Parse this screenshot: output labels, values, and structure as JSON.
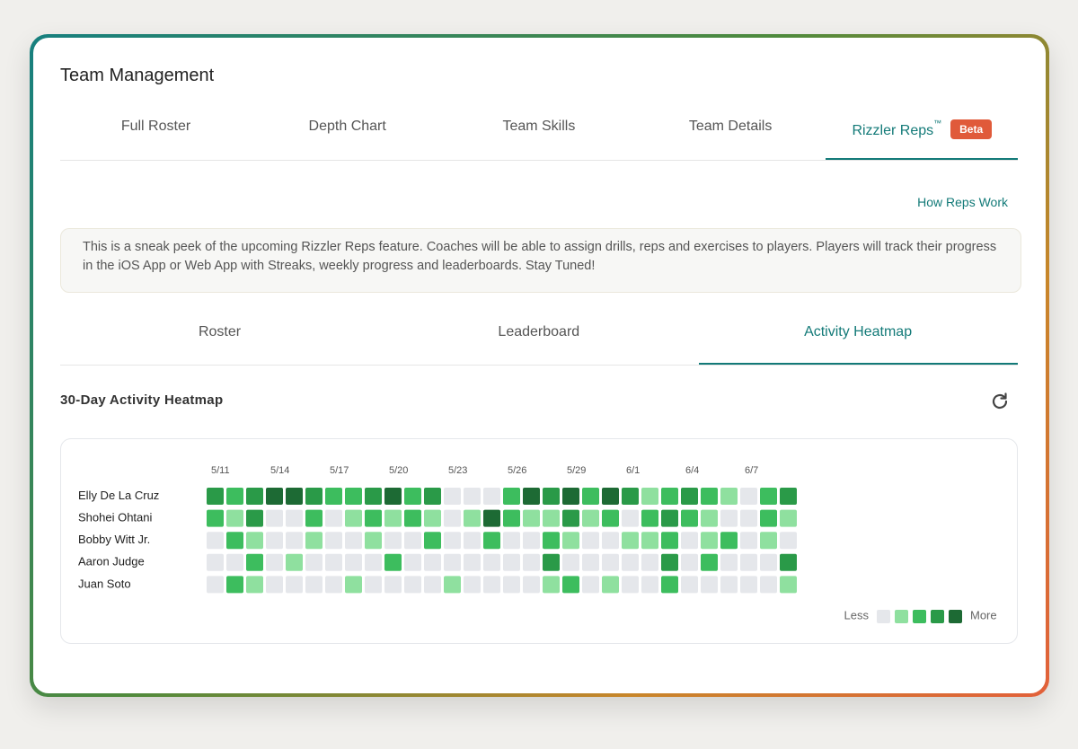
{
  "header": {
    "title": "Team Management"
  },
  "tabs": [
    {
      "label": "Full Roster"
    },
    {
      "label": "Depth Chart"
    },
    {
      "label": "Team Skills"
    },
    {
      "label": "Team Details"
    },
    {
      "label": "Rizzler Reps",
      "mark": "™",
      "badge": "Beta",
      "active": true
    }
  ],
  "help_link": "How Reps Work",
  "notice": "This is a sneak peek of the upcoming Rizzler Reps feature. Coaches will be able to assign drills, reps and exercises to players. Players will track their progress in the iOS App or Web App with Streaks, weekly progress and leaderboards. Stay Tuned!",
  "subtabs": [
    {
      "label": "Roster"
    },
    {
      "label": "Leaderboard"
    },
    {
      "label": "Activity Heatmap",
      "active": true
    }
  ],
  "section_title": "30-Day Activity Heatmap",
  "heatmap": {
    "dates": [
      "5/11",
      "5/14",
      "5/17",
      "5/20",
      "5/23",
      "5/26",
      "5/29",
      "6/1",
      "6/4",
      "6/7"
    ],
    "colors": [
      "#e5e7eb",
      "#8fe09f",
      "#3dbd5e",
      "#2a9a48",
      "#1d6a34"
    ],
    "rows": [
      {
        "name": "Elly De La Cruz",
        "levels": [
          3,
          2,
          3,
          4,
          4,
          3,
          2,
          2,
          3,
          4,
          2,
          3,
          0,
          0,
          0,
          2,
          4,
          3,
          4,
          2,
          4,
          3,
          1,
          2,
          3,
          2,
          1,
          0,
          2,
          3
        ]
      },
      {
        "name": "Shohei Ohtani",
        "levels": [
          2,
          1,
          3,
          0,
          0,
          2,
          0,
          1,
          2,
          1,
          2,
          1,
          0,
          1,
          4,
          2,
          1,
          1,
          3,
          1,
          2,
          0,
          2,
          3,
          2,
          1,
          0,
          0,
          2,
          1
        ]
      },
      {
        "name": "Bobby Witt Jr.",
        "levels": [
          0,
          2,
          1,
          0,
          0,
          1,
          0,
          0,
          1,
          0,
          0,
          2,
          0,
          0,
          2,
          0,
          0,
          2,
          1,
          0,
          0,
          1,
          1,
          2,
          0,
          1,
          2,
          0,
          1,
          0
        ]
      },
      {
        "name": "Aaron Judge",
        "levels": [
          0,
          0,
          2,
          0,
          1,
          0,
          0,
          0,
          0,
          2,
          0,
          0,
          0,
          0,
          0,
          0,
          0,
          3,
          0,
          0,
          0,
          0,
          0,
          3,
          0,
          2,
          0,
          0,
          0,
          3
        ]
      },
      {
        "name": "Juan Soto",
        "levels": [
          0,
          2,
          1,
          0,
          0,
          0,
          0,
          1,
          0,
          0,
          0,
          0,
          1,
          0,
          0,
          0,
          0,
          1,
          2,
          0,
          1,
          0,
          0,
          2,
          0,
          0,
          0,
          0,
          0,
          1
        ]
      }
    ],
    "legend_less": "Less",
    "legend_more": "More"
  }
}
